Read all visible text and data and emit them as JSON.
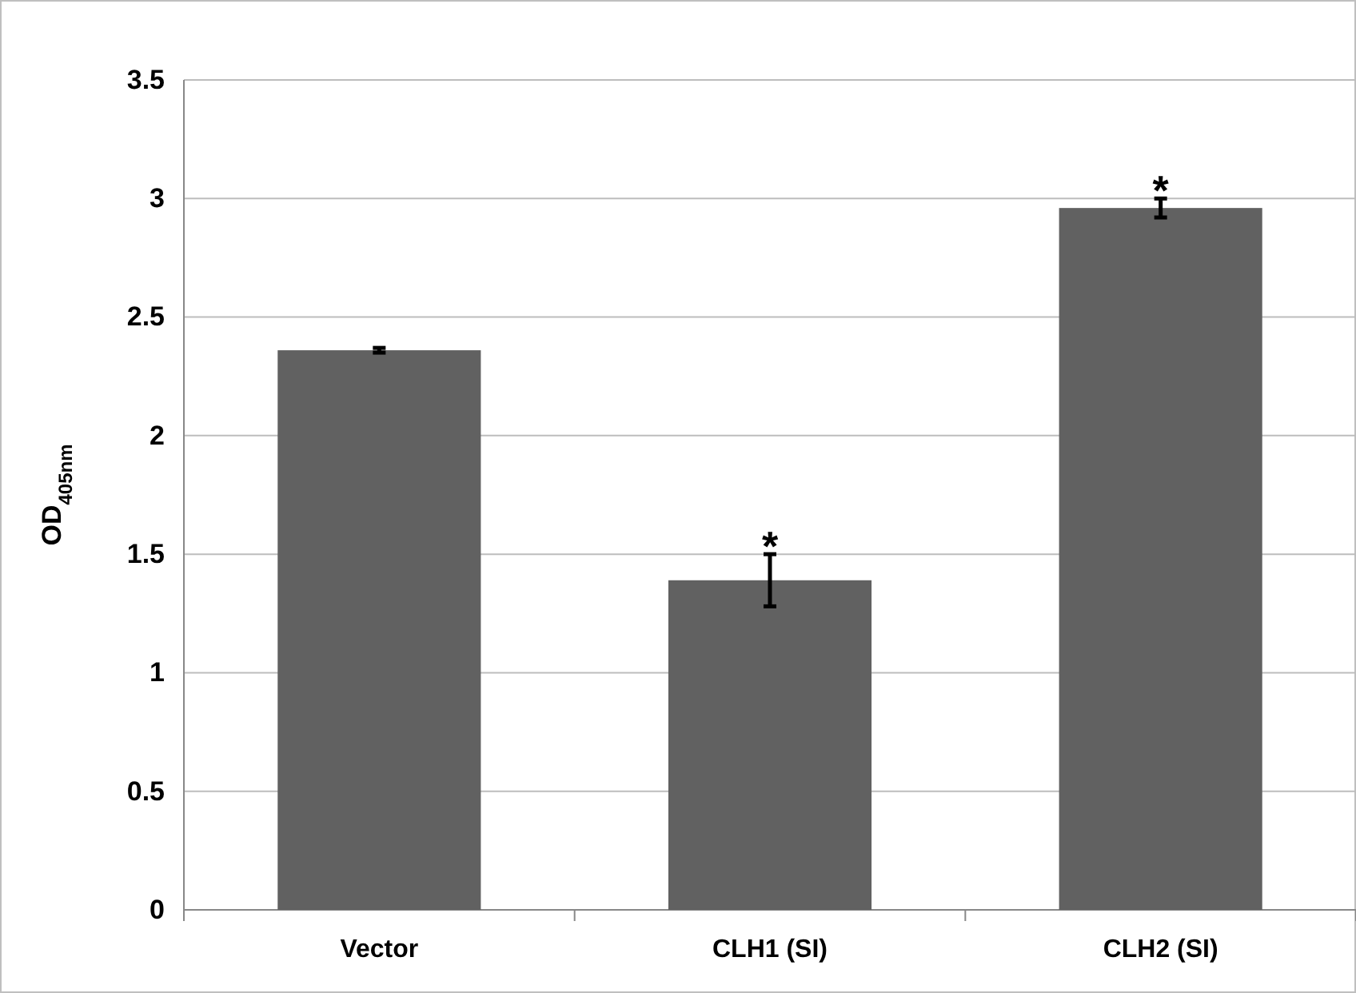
{
  "chart_data": {
    "type": "bar",
    "ylabel": "OD$_{405nm}$",
    "categories": [
      "Vector",
      "CLH1 (SI)",
      "CLH2 (SI)"
    ],
    "values": [
      2.36,
      1.39,
      2.96
    ],
    "errors": [
      0.01,
      0.11,
      0.04
    ],
    "color": "#616161",
    "ylim": [
      0,
      3.5
    ],
    "yticks": [
      0,
      {
        "value": 0.5,
        "label": "0.5"
      },
      1,
      {
        "value": 1.5,
        "label": "1.5"
      },
      2,
      {
        "value": 2.5,
        "label": "2.5"
      },
      3,
      {
        "value": 3.5,
        "label": "3.5"
      }
    ],
    "grid": "y",
    "annotations": [
      {
        "text": "*",
        "x": "CLH1 (SI)",
        "y": 1.5
      },
      {
        "text": "*",
        "x": "CLH2 (SI)",
        "y": 3.0
      }
    ]
  }
}
